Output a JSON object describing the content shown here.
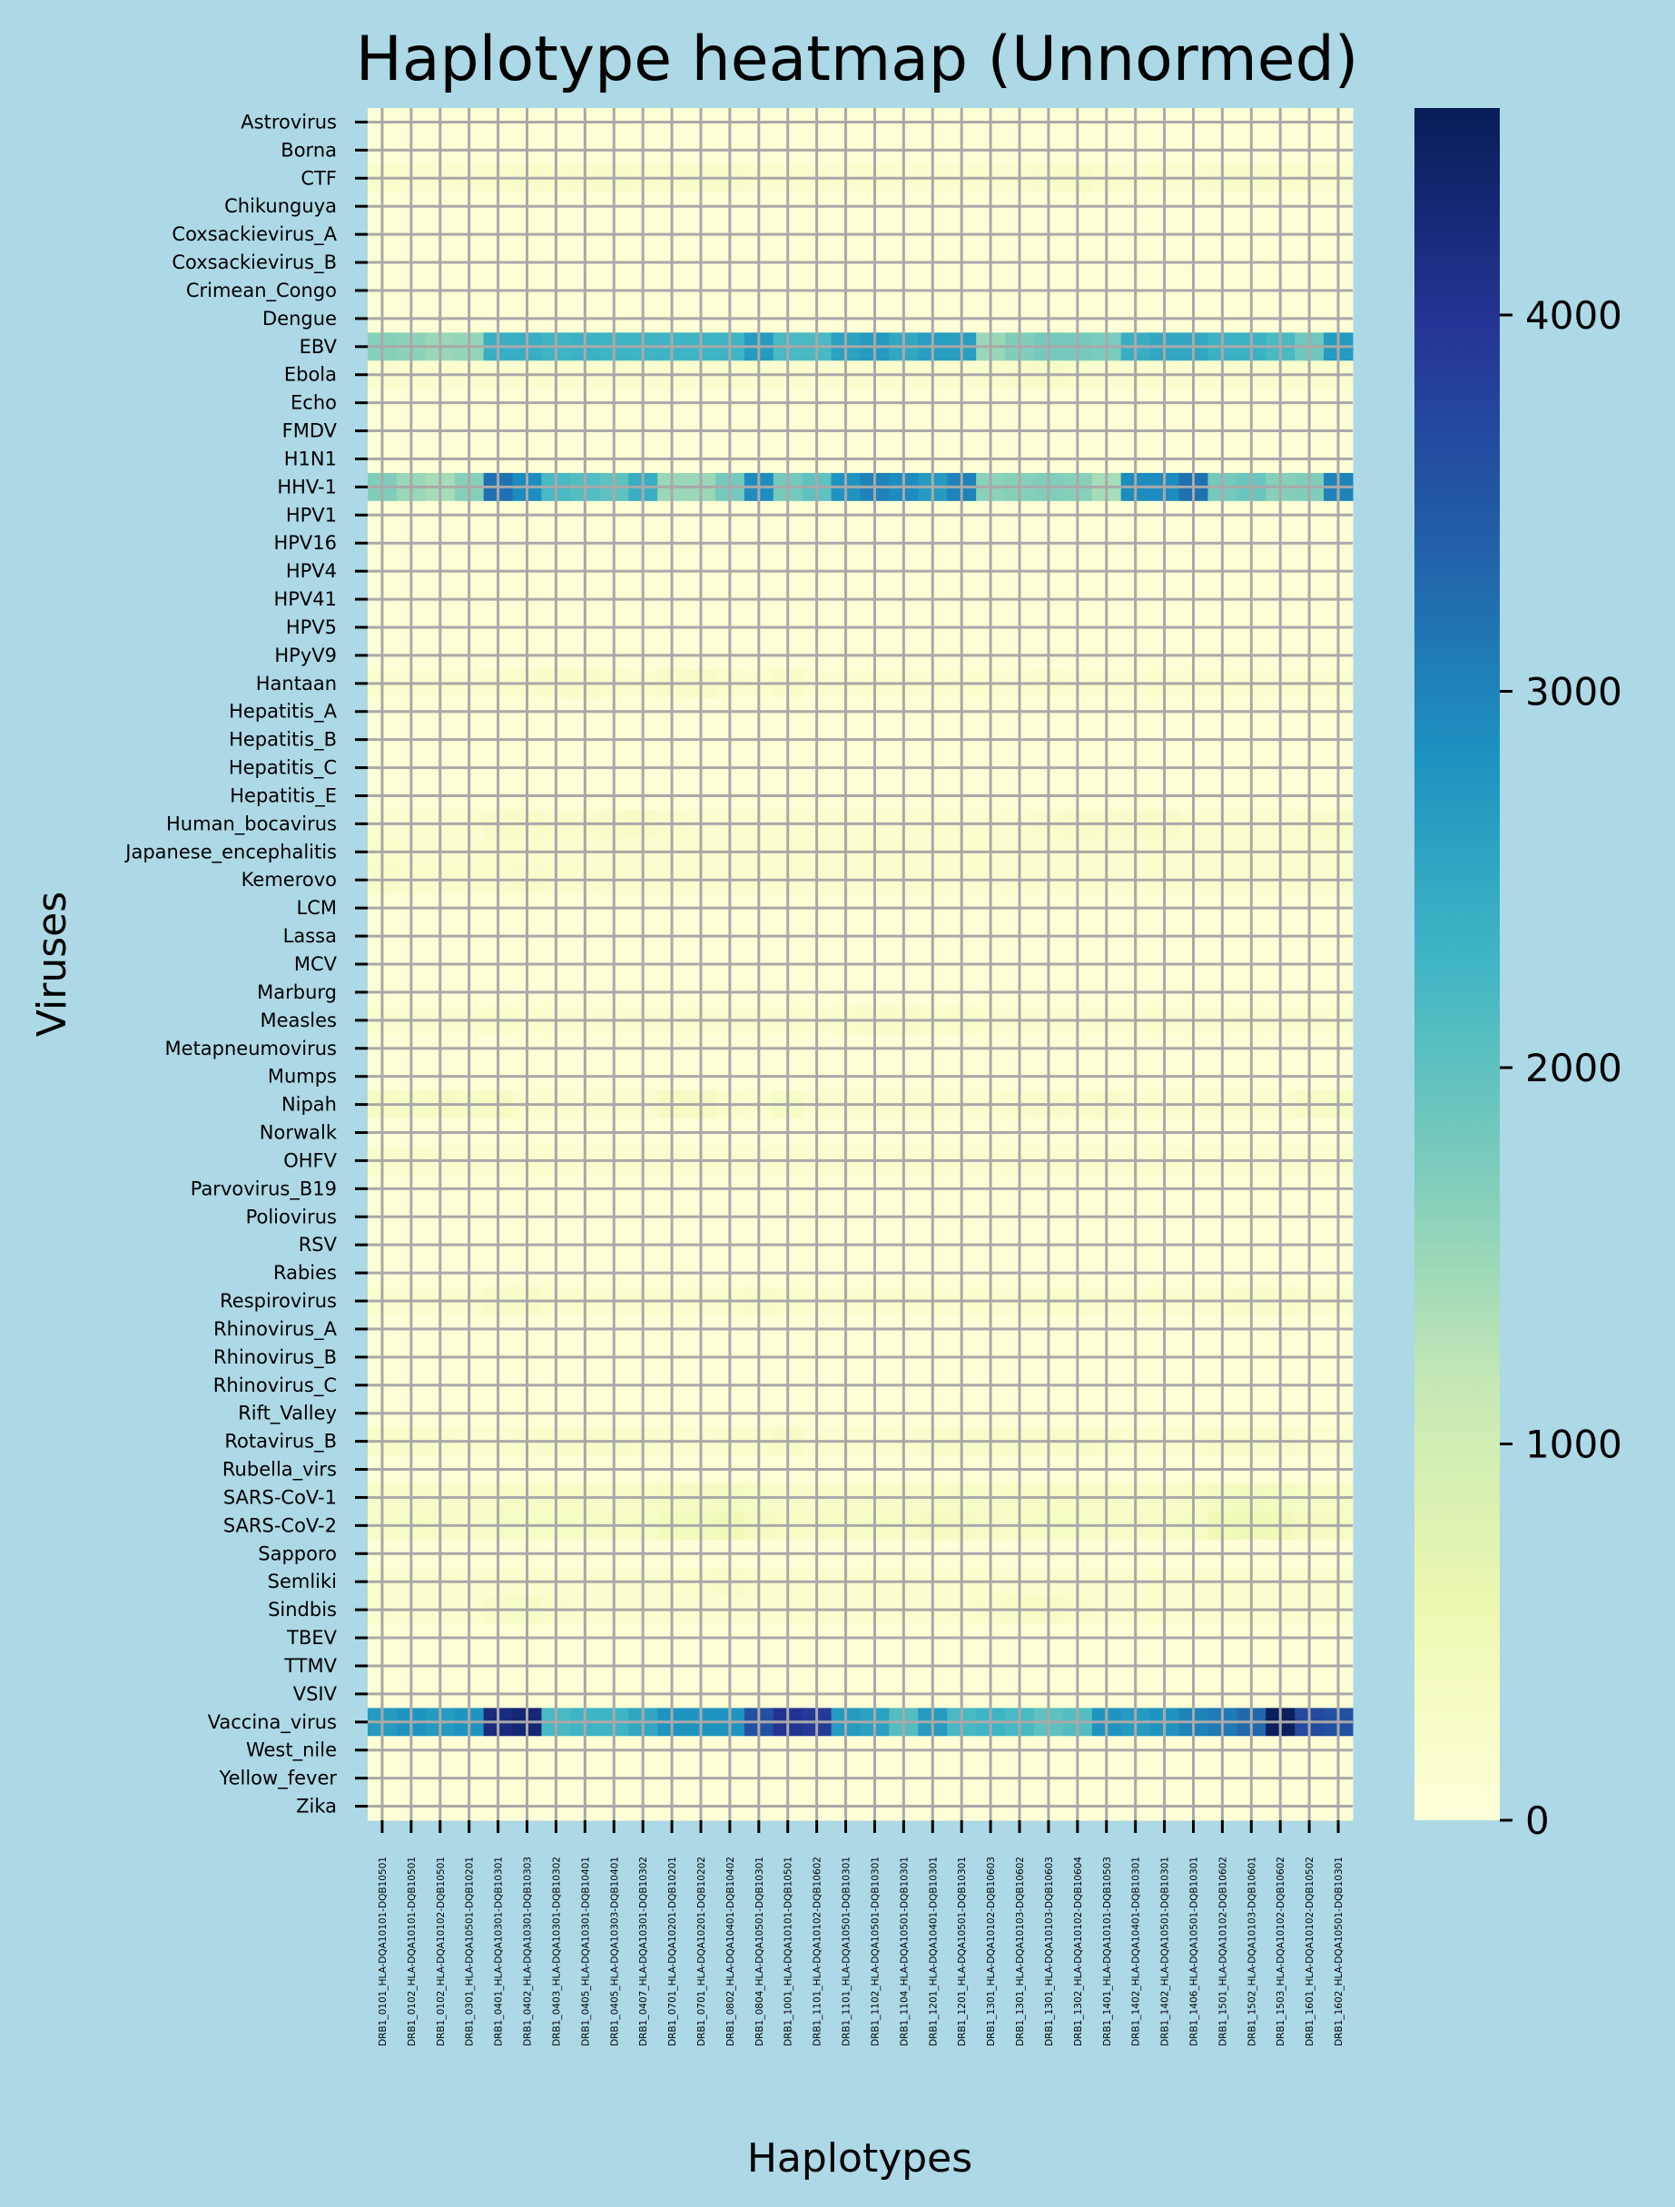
{
  "chart_data": {
    "type": "heatmap",
    "title": "Haplotype heatmap (Unnormed)",
    "xlabel": "Haplotypes",
    "ylabel": "Viruses",
    "colorbar": {
      "ticks": [
        0,
        1000,
        2000,
        3000,
        4000
      ],
      "range": [
        0,
        4550
      ],
      "colormap": "YlGnBu",
      "stops": [
        "#ffffd9",
        "#edf8b1",
        "#c7e9b4",
        "#7fcdbb",
        "#41b6c4",
        "#1d91c0",
        "#225ea8",
        "#253494",
        "#081d58"
      ]
    },
    "gridlines": true,
    "grid_color": "#a9a9a9",
    "background": "#add8e6",
    "haplotypes": [
      "DRB1_0101_HLA-DQA10101-DQB10501",
      "DRB1_0102_HLA-DQA10101-DQB10501",
      "DRB1_0102_HLA-DQA10102-DQB10501",
      "DRB1_0301_HLA-DQA10501-DQB10201",
      "DRB1_0401_HLA-DQA10301-DQB10301",
      "DRB1_0402_HLA-DQA10301-DQB10303",
      "DRB1_0403_HLA-DQA10301-DQB10302",
      "DRB1_0405_HLA-DQA10301-DQB10401",
      "DRB1_0405_HLA-DQA10303-DQB10401",
      "DRB1_0407_HLA-DQA10301-DQB10302",
      "DRB1_0701_HLA-DQA10201-DQB10201",
      "DRB1_0701_HLA-DQA10201-DQB10202",
      "DRB1_0802_HLA-DQA10401-DQB10402",
      "DRB1_0804_HLA-DQA10501-DQB10301",
      "DRB1_1001_HLA-DQA10101-DQB10501",
      "DRB1_1101_HLA-DQA10102-DQB10602",
      "DRB1_1101_HLA-DQA10501-DQB10301",
      "DRB1_1102_HLA-DQA10501-DQB10301",
      "DRB1_1104_HLA-DQA10501-DQB10301",
      "DRB1_1201_HLA-DQA10401-DQB10301",
      "DRB1_1201_HLA-DQA10501-DQB10301",
      "DRB1_1301_HLA-DQA10102-DQB10603",
      "DRB1_1301_HLA-DQA10103-DQB10602",
      "DRB1_1301_HLA-DQA10103-DQB10603",
      "DRB1_1302_HLA-DQA10102-DQB10604",
      "DRB1_1401_HLA-DQA10101-DQB10503",
      "DRB1_1402_HLA-DQA10401-DQB10301",
      "DRB1_1402_HLA-DQA10501-DQB10301",
      "DRB1_1406_HLA-DQA10501-DQB10301",
      "DRB1_1501_HLA-DQA10102-DQB10602",
      "DRB1_1502_HLA-DQA10103-DQB10601",
      "DRB1_1503_HLA-DQA10102-DQB10602",
      "DRB1_1601_HLA-DQA10102-DQB10502",
      "DRB1_1602_HLA-DQA10501-DQB10301"
    ],
    "viruses": [
      "Astrovirus",
      "Borna",
      "CTF",
      "Chikunguya",
      "Coxsackievirus_A",
      "Coxsackievirus_B",
      "Crimean_Congo",
      "Dengue",
      "EBV",
      "Ebola",
      "Echo",
      "FMDV",
      "H1N1",
      "HHV-1",
      "HPV1",
      "HPV16",
      "HPV4",
      "HPV41",
      "HPV5",
      "HPyV9",
      "Hantaan",
      "Hepatitis_A",
      "Hepatitis_B",
      "Hepatitis_C",
      "Hepatitis_E",
      "Human_bocavirus",
      "Japanese_encephalitis",
      "Kemerovo",
      "LCM",
      "Lassa",
      "MCV",
      "Marburg",
      "Measles",
      "Metapneumovirus",
      "Mumps",
      "Nipah",
      "Norwalk",
      "OHFV",
      "Parvovirus_B19",
      "Poliovirus",
      "RSV",
      "Rabies",
      "Respirovirus",
      "Rhinovirus_A",
      "Rhinovirus_B",
      "Rhinovirus_C",
      "Rift_Valley",
      "Rotavirus_B",
      "Rubella_virs",
      "SARS-CoV-1",
      "SARS-CoV-2",
      "Sapporo",
      "Semliki",
      "Sindbis",
      "TBEV",
      "TTMV",
      "VSIV",
      "Vaccina_virus",
      "West_nile",
      "Yellow_fever",
      "Zika"
    ],
    "default_value": 60,
    "row_values": {
      "CTF": [
        180,
        170,
        150,
        140,
        200,
        230,
        190,
        210,
        220,
        180,
        200,
        240,
        210,
        160,
        150,
        160,
        140,
        170,
        160,
        150,
        150,
        160,
        170,
        220,
        260,
        200,
        140,
        150,
        160,
        210,
        230,
        200,
        170,
        160
      ],
      "EBV": [
        1650,
        1600,
        1500,
        1550,
        2400,
        2400,
        2300,
        2350,
        2300,
        2300,
        2300,
        2300,
        2300,
        2700,
        2200,
        2200,
        2600,
        2700,
        2500,
        2650,
        2650,
        1500,
        1700,
        1800,
        1800,
        1750,
        2400,
        2500,
        2500,
        2350,
        2350,
        2200,
        1850,
        2700
      ],
      "Ebola": [
        150,
        140,
        140,
        130,
        160,
        150,
        160,
        150,
        140,
        150,
        160,
        170,
        200,
        150,
        140,
        140,
        160,
        150,
        160,
        150,
        150,
        200,
        220,
        250,
        180,
        150,
        160,
        140,
        150,
        150,
        140,
        160,
        150,
        140
      ],
      "HHV-1": [
        1700,
        1500,
        1400,
        1650,
        3200,
        2900,
        2200,
        2100,
        2000,
        2400,
        1500,
        1500,
        1800,
        2900,
        1800,
        2000,
        2800,
        3000,
        2900,
        2700,
        3000,
        1600,
        1650,
        1700,
        1650,
        1400,
        2900,
        2900,
        3200,
        1800,
        1900,
        1650,
        1700,
        3000
      ],
      "Hantaan": [
        160,
        150,
        150,
        130,
        180,
        200,
        220,
        240,
        200,
        170,
        230,
        250,
        180,
        170,
        230,
        160,
        150,
        160,
        170,
        150,
        160,
        150,
        170,
        200,
        160,
        150,
        150,
        150,
        150,
        170,
        160,
        150,
        140,
        150
      ],
      "Human_bocavirus": [
        140,
        140,
        150,
        130,
        230,
        240,
        200,
        200,
        220,
        250,
        180,
        170,
        150,
        160,
        140,
        140,
        150,
        160,
        170,
        150,
        150,
        140,
        150,
        180,
        210,
        200,
        220,
        240,
        170,
        150,
        150,
        160,
        200,
        210
      ],
      "Japanese_encephalitis": [
        180,
        170,
        150,
        150,
        200,
        160,
        150,
        160,
        150,
        150,
        160,
        150,
        150,
        160,
        150,
        150,
        150,
        150,
        150,
        150,
        150,
        150,
        150,
        150,
        150,
        150,
        150,
        150,
        150,
        150,
        150,
        150,
        150,
        150
      ],
      "Kemerovo": [
        210,
        200,
        190,
        180,
        200,
        220,
        180,
        180,
        170,
        170,
        170,
        160,
        150,
        150,
        150,
        150,
        150,
        150,
        150,
        150,
        150,
        150,
        150,
        150,
        150,
        150,
        150,
        150,
        150,
        150,
        150,
        150,
        150,
        150
      ],
      "Measles": [
        170,
        160,
        150,
        140,
        180,
        150,
        140,
        150,
        150,
        140,
        150,
        160,
        160,
        150,
        150,
        160,
        200,
        220,
        210,
        200,
        200,
        150,
        150,
        150,
        150,
        150,
        150,
        150,
        150,
        150,
        150,
        160,
        150,
        150
      ],
      "Nipah": [
        300,
        280,
        300,
        280,
        320,
        160,
        150,
        160,
        150,
        160,
        300,
        320,
        180,
        160,
        280,
        160,
        150,
        150,
        150,
        150,
        150,
        160,
        180,
        220,
        200,
        240,
        160,
        150,
        150,
        170,
        170,
        160,
        250,
        280
      ],
      "OHFV": [
        190,
        200,
        150,
        150,
        150,
        150,
        150,
        150,
        150,
        150,
        150,
        150,
        150,
        150,
        150,
        150,
        150,
        150,
        150,
        150,
        150,
        150,
        150,
        150,
        150,
        150,
        150,
        150,
        150,
        150,
        150,
        150,
        150,
        150
      ],
      "Respirovirus": [
        170,
        170,
        160,
        150,
        220,
        250,
        160,
        180,
        150,
        170,
        160,
        170,
        200,
        220,
        180,
        160,
        170,
        170,
        160,
        170,
        170,
        160,
        170,
        180,
        180,
        160,
        170,
        160,
        160,
        200,
        230,
        230,
        170,
        160
      ],
      "Rotavirus_B": [
        230,
        240,
        200,
        160,
        170,
        190,
        220,
        230,
        220,
        180,
        160,
        170,
        180,
        200,
        260,
        160,
        150,
        160,
        170,
        210,
        220,
        210,
        220,
        230,
        210,
        180,
        170,
        160,
        170,
        230,
        240,
        220,
        170,
        160
      ],
      "SARS-CoV-1": [
        240,
        250,
        230,
        220,
        250,
        260,
        250,
        260,
        240,
        250,
        300,
        330,
        350,
        280,
        230,
        230,
        240,
        250,
        240,
        260,
        270,
        240,
        250,
        260,
        260,
        250,
        240,
        240,
        250,
        360,
        380,
        360,
        280,
        260
      ],
      "SARS-CoV-2": [
        260,
        270,
        250,
        230,
        270,
        280,
        270,
        280,
        260,
        270,
        380,
        420,
        450,
        320,
        250,
        250,
        260,
        270,
        260,
        300,
        310,
        250,
        260,
        270,
        270,
        260,
        260,
        260,
        270,
        480,
        500,
        470,
        330,
        300
      ],
      "Semliki": [
        150,
        150,
        150,
        140,
        150,
        160,
        150,
        150,
        150,
        150,
        170,
        200,
        230,
        150,
        150,
        150,
        150,
        150,
        150,
        150,
        150,
        150,
        150,
        150,
        150,
        150,
        150,
        150,
        150,
        170,
        160,
        150,
        150,
        150
      ],
      "Sindbis": [
        150,
        150,
        150,
        140,
        220,
        270,
        200,
        150,
        150,
        150,
        150,
        150,
        150,
        150,
        150,
        150,
        150,
        150,
        150,
        150,
        150,
        200,
        250,
        260,
        180,
        150,
        150,
        150,
        150,
        150,
        150,
        150,
        150,
        150
      ],
      "Vaccina_virus": [
        2700,
        2800,
        2700,
        2800,
        4200,
        4300,
        2200,
        2300,
        2300,
        2500,
        2800,
        2800,
        2800,
        3600,
        4000,
        3900,
        2700,
        2600,
        2100,
        2700,
        2200,
        2300,
        2200,
        2000,
        2100,
        2800,
        2700,
        2800,
        3000,
        3100,
        3300,
        4500,
        3700,
        3600
      ]
    }
  }
}
